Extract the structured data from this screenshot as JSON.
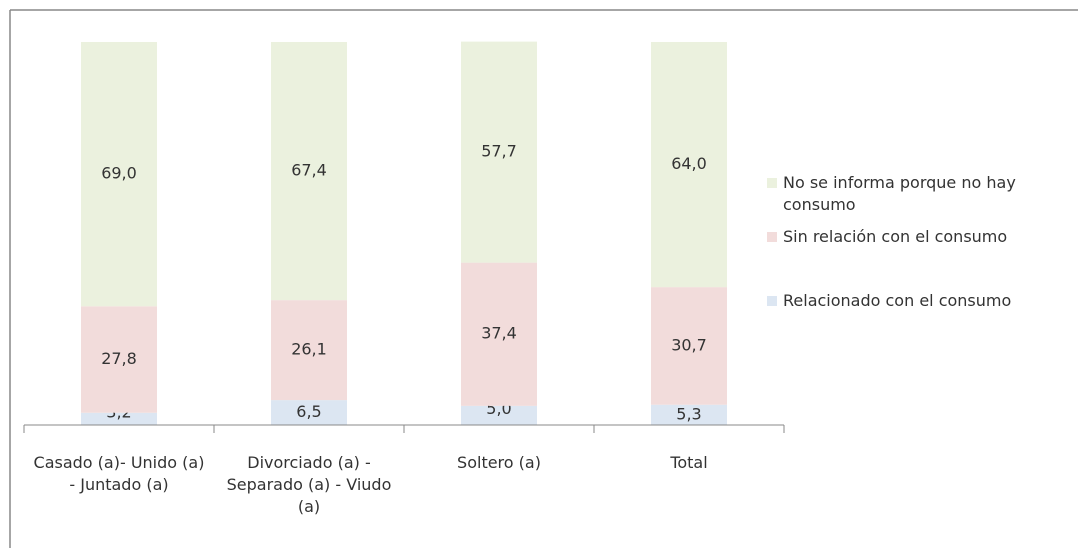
{
  "chart_data": {
    "type": "stacked_bar",
    "categories": [
      "Casado (a)- Unido (a) - Juntado (a)",
      "Divorciado (a) - Separado (a) - Viudo (a)",
      "Soltero (a)",
      "Total"
    ],
    "series": [
      {
        "name": "Relacionado con el consumo",
        "color": "#dce6f2",
        "values": [
          3.2,
          6.5,
          5.0,
          5.3
        ],
        "value_labels": [
          "3,2",
          "6,5",
          "5,0",
          "5,3"
        ]
      },
      {
        "name": "Sin relación con el consumo",
        "color": "#f2dcdb",
        "values": [
          27.8,
          26.1,
          37.4,
          30.7
        ],
        "value_labels": [
          "27,8",
          "26,1",
          "37,4",
          "30,7"
        ]
      },
      {
        "name": "No se informa porque no hay consumo",
        "color": "#ebf1de",
        "values": [
          69.0,
          67.4,
          57.7,
          64.0
        ],
        "value_labels": [
          "69,0",
          "67,4",
          "57,7",
          "64,0"
        ]
      }
    ],
    "ylim": [
      0,
      100
    ],
    "legend": "right"
  }
}
